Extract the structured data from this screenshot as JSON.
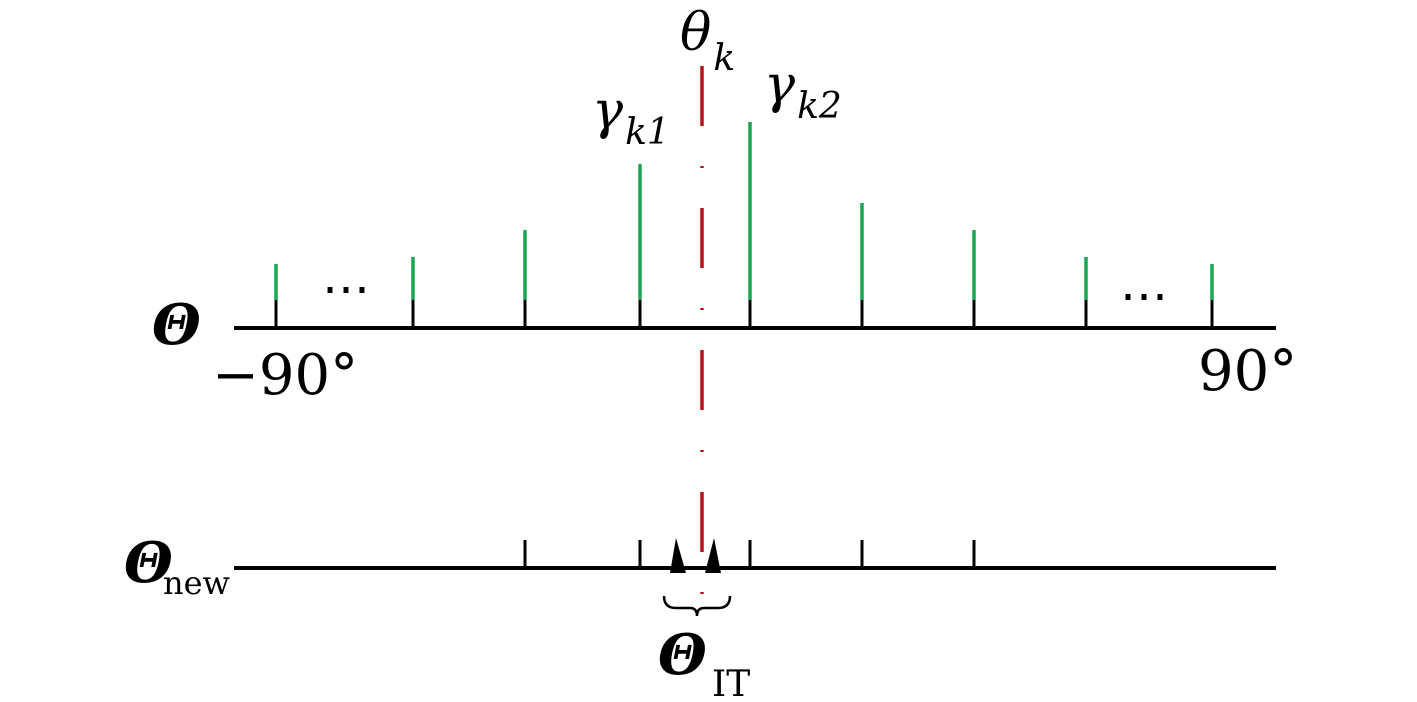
{
  "labels": {
    "theta_k_main": "θ",
    "theta_k_sub": "k",
    "gamma1_main": "γ",
    "gamma1_sub": "k1",
    "gamma2_main": "γ",
    "gamma2_sub": "k2",
    "axis_top_symbol": "Θ",
    "axis_bottom_symbol": "Θ",
    "axis_bottom_sub": "new",
    "it_symbol": "Θ",
    "it_sub": "IT",
    "left_end": "−90°",
    "right_end": "90°",
    "ellipsis_left": "⋯",
    "ellipsis_right": "⋯"
  },
  "colors": {
    "green": "#1aa655",
    "red": "#b5121b",
    "black": "#000000"
  }
}
